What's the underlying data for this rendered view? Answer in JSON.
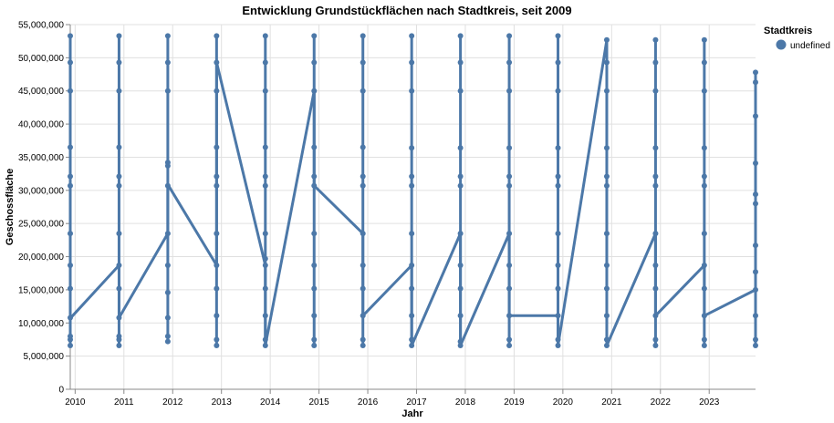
{
  "chart_data": {
    "type": "line",
    "title": "Entwicklung Grundstückflächen nach Stadtkreis, seit 2009",
    "xlabel": "Jahr",
    "ylabel": "Geschossfläche",
    "x_ticks": [
      "2010",
      "2011",
      "2012",
      "2013",
      "2014",
      "2015",
      "2016",
      "2017",
      "2018",
      "2019",
      "2020",
      "2021",
      "2022",
      "2023"
    ],
    "xlim": [
      2009.9,
      2023.95
    ],
    "ylim": [
      0,
      55000000
    ],
    "y_ticks": [
      0,
      5000000,
      10000000,
      15000000,
      20000000,
      25000000,
      30000000,
      35000000,
      40000000,
      45000000,
      50000000,
      55000000
    ],
    "y_tick_labels": [
      "0",
      "5,000,000",
      "10,000,000",
      "15,000,000",
      "20,000,000",
      "25,000,000",
      "30,000,000",
      "35,000,000",
      "40,000,000",
      "45,000,000",
      "50,000,000",
      "55,000,000"
    ],
    "grid": true,
    "legend": {
      "title": "Stadtkreis",
      "position": "top-right",
      "entries": [
        "undefined"
      ]
    },
    "series": [
      {
        "name": "undefined",
        "color": "#4c78a8",
        "groups": [
          {
            "x": 2009.9,
            "values": [
              6600000,
              7500000,
              8000000,
              10800000,
              15200000,
              18700000,
              23500000,
              30700000,
              32100000,
              36500000,
              45000000,
              49300000,
              53300000
            ]
          },
          {
            "x": 2010.9,
            "values": [
              6600000,
              7500000,
              8000000,
              10800000,
              15200000,
              18700000,
              23500000,
              30700000,
              32100000,
              36500000,
              45000000,
              49300000,
              53300000
            ]
          },
          {
            "x": 2011.9,
            "values": [
              7200000,
              8000000,
              10800000,
              14600000,
              18700000,
              23500000,
              30700000,
              33700000,
              34200000,
              45000000,
              49300000,
              53300000
            ]
          },
          {
            "x": 2012.9,
            "values": [
              6600000,
              7500000,
              11100000,
              15200000,
              18700000,
              23500000,
              30700000,
              32100000,
              36500000,
              45000000,
              49300000,
              53300000
            ]
          },
          {
            "x": 2013.9,
            "values": [
              6600000,
              7500000,
              11100000,
              15200000,
              18700000,
              19700000,
              23500000,
              30700000,
              32100000,
              36500000,
              45000000,
              49300000,
              53300000
            ]
          },
          {
            "x": 2014.9,
            "values": [
              6600000,
              7500000,
              11100000,
              15200000,
              18700000,
              23500000,
              30700000,
              32100000,
              36500000,
              45000000,
              49300000,
              53300000
            ]
          },
          {
            "x": 2015.9,
            "values": [
              6600000,
              7500000,
              11100000,
              15200000,
              18700000,
              23500000,
              30700000,
              32100000,
              36500000,
              45000000,
              49300000,
              53300000
            ]
          },
          {
            "x": 2016.9,
            "values": [
              6600000,
              7500000,
              11100000,
              15200000,
              18700000,
              23500000,
              30700000,
              32100000,
              36400000,
              45000000,
              49300000,
              53300000
            ]
          },
          {
            "x": 2017.9,
            "values": [
              6600000,
              7200000,
              11100000,
              15200000,
              18700000,
              23500000,
              30700000,
              32100000,
              36400000,
              45000000,
              49300000,
              53300000
            ]
          },
          {
            "x": 2018.9,
            "values": [
              6600000,
              7500000,
              11100000,
              15200000,
              18700000,
              23500000,
              30700000,
              32100000,
              36400000,
              45000000,
              49300000,
              53300000
            ]
          },
          {
            "x": 2019.9,
            "values": [
              6600000,
              7500000,
              11100000,
              15200000,
              18700000,
              23500000,
              30700000,
              32100000,
              36400000,
              45000000,
              49300000,
              53300000
            ]
          },
          {
            "x": 2020.9,
            "values": [
              6600000,
              7500000,
              11100000,
              15200000,
              18700000,
              23500000,
              30700000,
              32100000,
              36400000,
              45000000,
              49300000,
              52700000
            ]
          },
          {
            "x": 2021.9,
            "values": [
              6600000,
              7500000,
              11100000,
              15200000,
              18700000,
              23500000,
              30700000,
              32100000,
              36400000,
              45000000,
              49300000,
              52700000
            ]
          },
          {
            "x": 2022.9,
            "values": [
              6600000,
              7500000,
              11100000,
              15200000,
              18700000,
              23500000,
              30700000,
              32100000,
              36400000,
              45000000,
              49300000,
              52700000
            ]
          },
          {
            "x": 2023.95,
            "values": [
              6600000,
              7500000,
              11100000,
              15000000,
              17700000,
              21700000,
              28000000,
              29400000,
              34100000,
              41200000,
              46300000,
              47800000
            ]
          }
        ],
        "path": [
          [
            2009.9,
            10700000
          ],
          [
            2010.9,
            18700000
          ],
          [
            2010.9,
            10800000
          ],
          [
            2011.9,
            23500000
          ],
          [
            2011.9,
            30900000
          ],
          [
            2012.9,
            18700000
          ],
          [
            2012.9,
            49300000
          ],
          [
            2013.9,
            18700000
          ],
          [
            2013.9,
            6600000
          ],
          [
            2014.9,
            45000000
          ],
          [
            2014.9,
            30700000
          ],
          [
            2015.9,
            23500000
          ],
          [
            2015.9,
            11100000
          ],
          [
            2016.9,
            18700000
          ],
          [
            2016.9,
            6600000
          ],
          [
            2017.9,
            23500000
          ],
          [
            2017.9,
            6600000
          ],
          [
            2018.9,
            23500000
          ],
          [
            2018.9,
            11100000
          ],
          [
            2019.9,
            11100000
          ],
          [
            2019.9,
            6600000
          ],
          [
            2020.9,
            52700000
          ],
          [
            2020.9,
            6600000
          ],
          [
            2021.9,
            23500000
          ],
          [
            2021.9,
            11100000
          ],
          [
            2022.9,
            18700000
          ],
          [
            2022.9,
            11100000
          ],
          [
            2023.95,
            15000000
          ]
        ]
      }
    ]
  }
}
